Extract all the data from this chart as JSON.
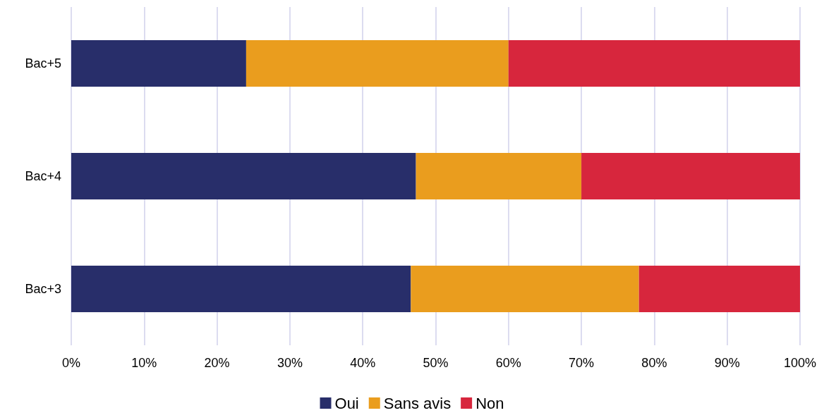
{
  "chart_data": {
    "type": "bar",
    "orientation": "horizontal",
    "stacked": true,
    "categories": [
      "Bac+5",
      "Bac+4",
      "Bac+3"
    ],
    "series": [
      {
        "name": "Oui",
        "color": "#282e6a",
        "values": [
          24,
          47.3,
          46.6
        ]
      },
      {
        "name": "Sans avis",
        "color": "#ea9d1e",
        "values": [
          36,
          22.7,
          31.3
        ]
      },
      {
        "name": "Non",
        "color": "#d7263d",
        "values": [
          40,
          30,
          22.1
        ]
      }
    ],
    "xlim": [
      0,
      100
    ],
    "xticks": [
      {
        "value": 0,
        "label": "0%"
      },
      {
        "value": 10,
        "label": "10%"
      },
      {
        "value": 20,
        "label": "20%"
      },
      {
        "value": 30,
        "label": "30%"
      },
      {
        "value": 40,
        "label": "40%"
      },
      {
        "value": 50,
        "label": "50%"
      },
      {
        "value": 60,
        "label": "60%"
      },
      {
        "value": 70,
        "label": "70%"
      },
      {
        "value": 80,
        "label": "80%"
      },
      {
        "value": 90,
        "label": "90%"
      },
      {
        "value": 100,
        "label": "100%"
      }
    ],
    "grid": "x",
    "legend": "bottom"
  }
}
